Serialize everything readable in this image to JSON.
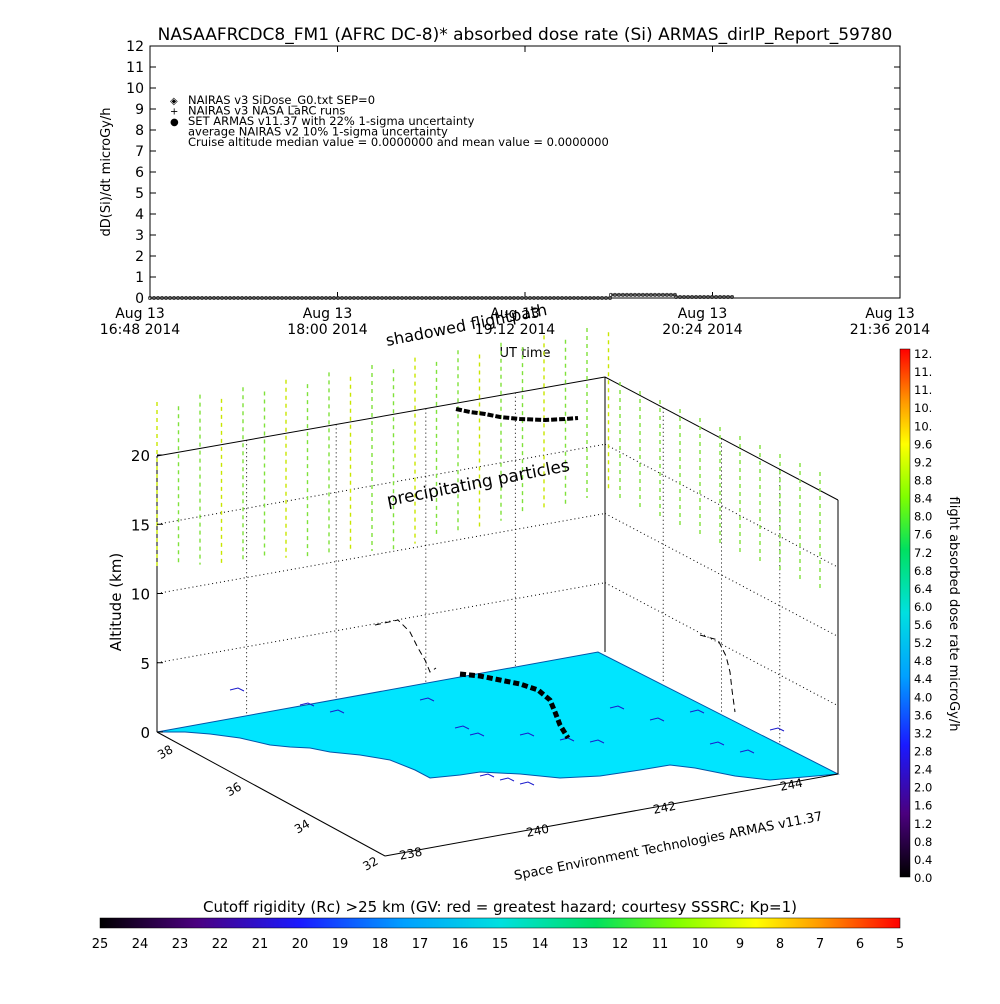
{
  "title": "NASAAFRCDC8_FM1 (AFRC DC-8)* absorbed dose rate (Si) ARMAS_dirIP_Report_59780",
  "colors": {
    "ground": "#00e5ff",
    "curtain": "#7fe23a",
    "curtain_alt": "#c9e600",
    "track": "#000000",
    "frame": "#000000",
    "grid": "#000000"
  },
  "chart_data": [
    {
      "type": "line",
      "name": "dose-rate-timeseries",
      "ylabel": "dD(Si)/dt microGy/h",
      "xlabel": "UT time",
      "ylim": [
        0,
        12
      ],
      "y_ticks": [
        "0",
        "1",
        "2",
        "3",
        "4",
        "5",
        "6",
        "7",
        "8",
        "9",
        "10",
        "11",
        "12"
      ],
      "x_ticks": [
        {
          "top": "Aug 13",
          "bottom": "16:48 2014"
        },
        {
          "top": "Aug 13",
          "bottom": "18:00 2014"
        },
        {
          "top": "Aug 13",
          "bottom": "19:12 2014"
        },
        {
          "top": "Aug 13",
          "bottom": "20:24 2014"
        },
        {
          "top": "Aug 13",
          "bottom": "21:36 2014"
        }
      ],
      "xlim": [
        "16:48",
        "21:36"
      ],
      "legend": [
        {
          "symbol": "◈",
          "label": "NAIRAS v3 SiDose_G0.txt SEP=0"
        },
        {
          "symbol": "+",
          "label": "NAIRAS v3 NASA LaRC runs"
        },
        {
          "symbol": "●",
          "label": "SET ARMAS v11.37 with 22% 1-sigma uncertainty"
        },
        {
          "symbol": "",
          "label": "average NAIRAS v2 10% 1-sigma uncertainty"
        },
        {
          "symbol": "",
          "label": "Cruise altitude median value = 0.0000000 and mean value = 0.0000000"
        }
      ],
      "series": [
        {
          "x_start": "16:48",
          "x_end": "19:45",
          "value": 0.0
        },
        {
          "x_start": "19:45",
          "x_end": "20:10",
          "value": 0.15
        },
        {
          "x_start": "20:10",
          "x_end": "20:32",
          "value": 0.05
        }
      ]
    },
    {
      "type": "scatter",
      "name": "flight-track-3d",
      "zlabel": "Altitude (km)",
      "z_ticks": [
        "0",
        "5",
        "10",
        "15",
        "20"
      ],
      "lat_ticks": [
        "38",
        "36",
        "34",
        "32"
      ],
      "lon_ticks": [
        "238",
        "240",
        "242",
        "244"
      ],
      "annotations": [
        "shadowed flightpath",
        "precipitating particles",
        "Space Environment Technologies ARMAS v11.37"
      ]
    }
  ],
  "right_colorbar": {
    "label": "flight absorbed dose rate microGy/h",
    "ticks": [
      "12.",
      "11.",
      "11.",
      "10.",
      "10.",
      "9.6",
      "9.2",
      "8.8",
      "8.4",
      "8.0",
      "7.6",
      "7.2",
      "6.8",
      "6.4",
      "6.0",
      "5.6",
      "5.2",
      "4.8",
      "4.4",
      "4.0",
      "3.6",
      "3.2",
      "2.8",
      "2.4",
      "2.0",
      "1.6",
      "1.2",
      "0.8",
      "0.4",
      "0.0"
    ]
  },
  "bottom_colorbar": {
    "label": "Cutoff rigidity (Rc) >25 km (GV: red = greatest hazard; courtesy SSSRC; Kp=1)",
    "ticks": [
      "25",
      "24",
      "23",
      "22",
      "21",
      "20",
      "19",
      "18",
      "17",
      "16",
      "15",
      "14",
      "13",
      "12",
      "11",
      "10",
      "9",
      "8",
      "7",
      "6",
      "5"
    ]
  }
}
